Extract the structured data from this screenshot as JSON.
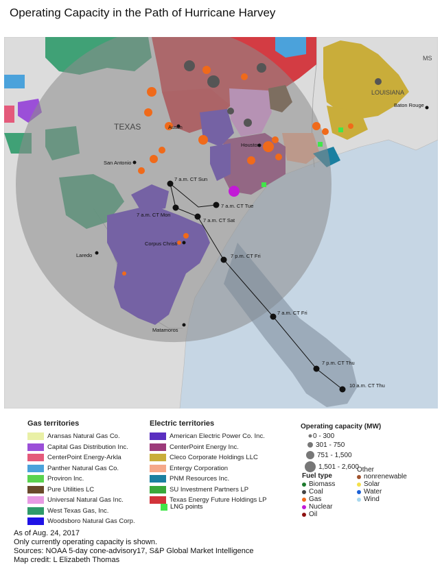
{
  "title": "Operating Capacity in the Path of Hurricane Harvey",
  "map": {
    "state_labels": [
      "TEXAS",
      "LOUISIANA",
      "MS"
    ],
    "cities": [
      "Austin",
      "Houston",
      "San Antonio",
      "Laredo",
      "Corpus Christi",
      "Matamoros",
      "Baton Rouge"
    ],
    "track_labels": [
      "7 a.m. CT Sun",
      "7 a.m. CT Tue",
      "7 a.m. CT Mon",
      "7 a.m. CT Sat",
      "7 p.m. CT Fri",
      "7 a.m. CT Fri",
      "7 p.m. CT Thu",
      "10 a.m. CT Thu"
    ],
    "colors": {
      "land": "#dcdcdc",
      "water": "#c6d6e4",
      "cone_outer": "#a5a5a5",
      "cone_inner": "#8f9aa6"
    }
  },
  "gas_legend": {
    "heading": "Gas territories",
    "items": [
      {
        "label": "Aransas Natural Gas Co.",
        "color": "#e9f0a6"
      },
      {
        "label": "Capital Gas Distribution Inc.",
        "color": "#9b4fd8"
      },
      {
        "label": "CenterPoint Energy-Arkla",
        "color": "#e45a7b"
      },
      {
        "label": "Panther Natural Gas Co.",
        "color": "#4ba2db"
      },
      {
        "label": "Proviron Inc.",
        "color": "#5ad34f"
      },
      {
        "label": "Pure Utilities LC",
        "color": "#6a4a2c"
      },
      {
        "label": "Universal Natural Gas Inc.",
        "color": "#e89ae4"
      },
      {
        "label": "West Texas Gas, Inc.",
        "color": "#2f9a6a"
      },
      {
        "label": "Woodsboro Natural Gas Corp.",
        "color": "#1f12e6"
      }
    ]
  },
  "electric_legend": {
    "heading": "Electric territories",
    "items": [
      {
        "label": "American Electric Power Co. Inc.",
        "color": "#5a2fc0"
      },
      {
        "label": "CenterPoint Energy Inc.",
        "color": "#9c3a7a"
      },
      {
        "label": "Cleco Corporate Holdings LLC",
        "color": "#c9ad3a"
      },
      {
        "label": "Entergy Corporation",
        "color": "#f5a889"
      },
      {
        "label": "PNM Resources Inc.",
        "color": "#1a7fa0"
      },
      {
        "label": "SU Investment Partners LP",
        "color": "#3aa83a"
      },
      {
        "label": "Texas Energy Future Holdings LP",
        "color": "#d2333a"
      }
    ]
  },
  "lng_legend": {
    "label": "LNG points",
    "color": "#42e64a"
  },
  "capacity_legend": {
    "heading": "Operating capacity (MW)",
    "items": [
      "0 - 300",
      "301 - 750",
      "751 - 1,500",
      "1,501 - 2,600"
    ]
  },
  "fuel_legend": {
    "heading": "Fuel type",
    "other_heading": "Other",
    "items": [
      {
        "label": "Biomass",
        "color": "#1e7a2e"
      },
      {
        "label": "Coal",
        "color": "#444444"
      },
      {
        "label": "Gas",
        "color": "#f06a1a"
      },
      {
        "label": "Nuclear",
        "color": "#c21ad6"
      },
      {
        "label": "Oil",
        "color": "#8e1010"
      }
    ],
    "other_items": [
      {
        "label": "nonrenewable",
        "color": "#a0522d"
      },
      {
        "label": "Solar",
        "color": "#f4e04a"
      },
      {
        "label": "Water",
        "color": "#1a5fd6"
      },
      {
        "label": "Wind",
        "color": "#a8d8ee"
      }
    ]
  },
  "notes": [
    "As of Aug. 24, 2017",
    "Only currently operating capacity is shown.",
    "Sources: NOAA 5-day cone-advisory17, S&P Global Market Intelligence",
    "Map credit: L Elizabeth Thomas"
  ]
}
